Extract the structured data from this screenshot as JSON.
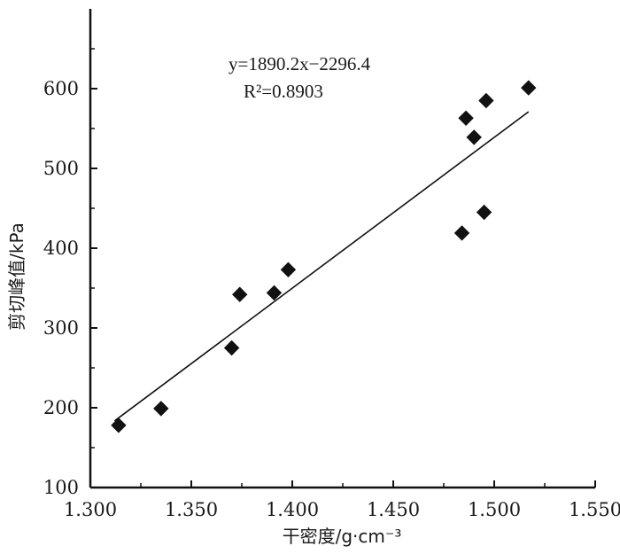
{
  "chart_data": {
    "type": "scatter",
    "title": "",
    "xlabel": "干密度/g·cm⁻³",
    "ylabel": "剪切峰值/kPa",
    "xlim": [
      1.3,
      1.55
    ],
    "ylim": [
      100,
      700
    ],
    "x_ticks": [
      "1.300",
      "1.350",
      "1.400",
      "1.450",
      "1.500",
      "1.550"
    ],
    "y_ticks": [
      "100",
      "200",
      "300",
      "400",
      "500",
      "600"
    ],
    "grid": false,
    "legend": "none",
    "marker": "diamond",
    "marker_color": "#111111",
    "series": [
      {
        "x": [
          1.314,
          1.335,
          1.37,
          1.374,
          1.391,
          1.398,
          1.484,
          1.486,
          1.49,
          1.495,
          1.496,
          1.517
        ],
        "y": [
          178,
          199,
          275,
          342,
          344,
          373,
          419,
          563,
          539,
          445,
          585,
          601
        ]
      }
    ],
    "trendline": {
      "slope": 1890.2,
      "intercept": -2296.4,
      "x_range": [
        1.312,
        1.517
      ],
      "equation_label": "y=1890.2x−2296.4",
      "r2_label": "R²=0.8903"
    }
  }
}
